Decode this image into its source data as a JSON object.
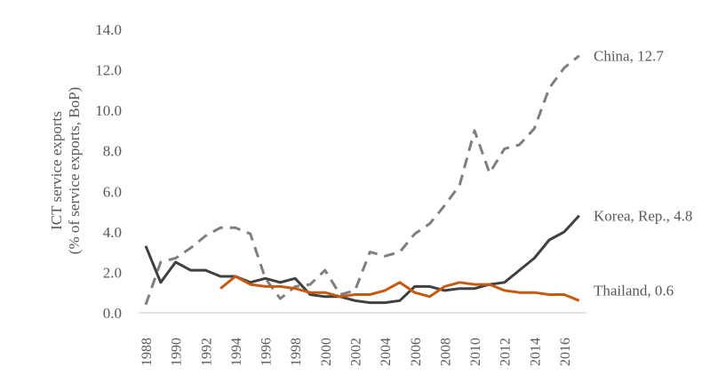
{
  "chart_data": {
    "type": "line",
    "title": "",
    "xlabel": "",
    "ylabel": [
      "ICT service exports",
      "(% of service exports, BoP)"
    ],
    "ylim": [
      0,
      14
    ],
    "yticks": [
      "0.0",
      "2.0",
      "4.0",
      "6.0",
      "8.0",
      "10.0",
      "12.0",
      "14.0"
    ],
    "x": [
      1988,
      1989,
      1990,
      1991,
      1992,
      1993,
      1994,
      1995,
      1996,
      1997,
      1998,
      1999,
      2000,
      2001,
      2002,
      2003,
      2004,
      2005,
      2006,
      2007,
      2008,
      2009,
      2010,
      2011,
      2012,
      2013,
      2014,
      2015,
      2016,
      2017
    ],
    "xticks": [
      "1988",
      "1990",
      "1992",
      "1994",
      "1996",
      "1998",
      "2000",
      "2002",
      "2004",
      "2006",
      "2008",
      "2010",
      "2012",
      "2014",
      "2016"
    ],
    "grid": false,
    "series": [
      {
        "name": "China",
        "label": "China, 12.7",
        "color": "#7f7f7f",
        "dash": true,
        "values": [
          0.4,
          2.5,
          2.7,
          3.2,
          3.8,
          4.2,
          4.2,
          3.9,
          1.7,
          0.7,
          1.3,
          1.4,
          2.1,
          0.9,
          1.1,
          3.0,
          2.8,
          3.0,
          3.9,
          4.4,
          5.3,
          6.3,
          9.0,
          6.9,
          8.1,
          8.3,
          9.1,
          11.1,
          12.1,
          12.7
        ]
      },
      {
        "name": "Korea, Rep.",
        "label": "Korea, Rep., 4.8",
        "color": "#404040",
        "dash": false,
        "values": [
          3.3,
          1.5,
          2.5,
          2.1,
          2.1,
          1.8,
          1.8,
          1.5,
          1.7,
          1.5,
          1.7,
          0.9,
          0.8,
          0.8,
          0.6,
          0.5,
          0.5,
          0.6,
          1.3,
          1.3,
          1.1,
          1.2,
          1.2,
          1.4,
          1.5,
          2.1,
          2.7,
          3.6,
          4.0,
          4.8
        ]
      },
      {
        "name": "Thailand",
        "label": "Thailand, 0.6",
        "color": "#c55a11",
        "dash": false,
        "values": [
          null,
          null,
          null,
          null,
          null,
          1.2,
          1.8,
          1.4,
          1.3,
          1.3,
          1.2,
          1.0,
          1.0,
          0.8,
          0.9,
          0.9,
          1.1,
          1.5,
          1.0,
          0.8,
          1.3,
          1.5,
          1.4,
          1.4,
          1.1,
          1.0,
          1.0,
          0.9,
          0.9,
          0.6
        ]
      }
    ]
  }
}
